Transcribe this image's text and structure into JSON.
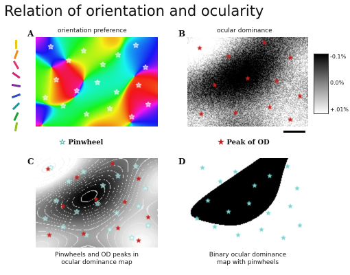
{
  "page": {
    "title": "Relation of orientation and ocularity"
  },
  "panels": {
    "a": {
      "label": "A",
      "caption": "orientation preference"
    },
    "b": {
      "label": "B",
      "caption": "ocular dominance"
    },
    "c": {
      "label": "C",
      "caption_line1": "Pinwheels and OD peaks in",
      "caption_line2": "ocular dominance map"
    },
    "d": {
      "label": "D",
      "caption_line1": "Binary ocular dominance",
      "caption_line2": "map with pinwheels"
    }
  },
  "legend": {
    "pinwheel_symbol": "☆",
    "pinwheel_label": "Pinwheel",
    "od_symbol": "★",
    "od_label": "Peak of OD"
  },
  "colorbar": {
    "top": "-0.1%",
    "mid": "0.0%",
    "bottom": "+.01%"
  },
  "orientation_key_colors": [
    "#e8c81e",
    "#f08a1e",
    "#e0356e",
    "#c8287a",
    "#7a2c9a",
    "#2a4ab8",
    "#1a9a9a",
    "#1e9a3a",
    "#8cc21e"
  ],
  "colors": {
    "pinwheel": "#7ad6d0",
    "od_peak": "#cc1e1e"
  }
}
